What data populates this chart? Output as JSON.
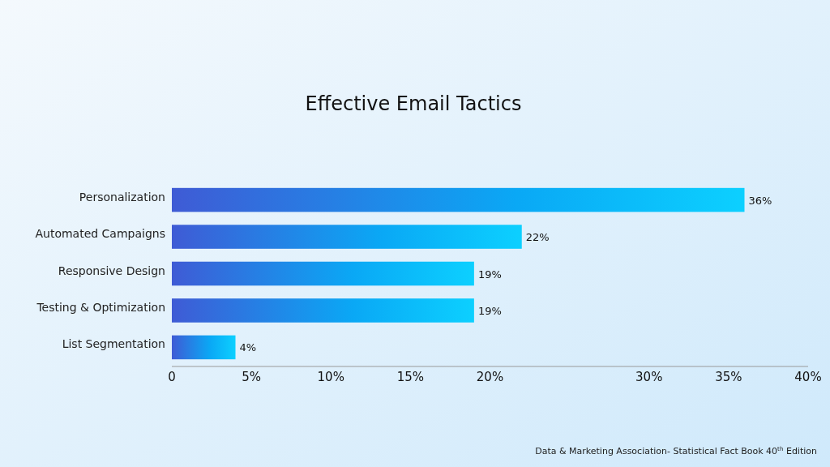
{
  "chart_data": {
    "type": "bar",
    "orientation": "horizontal",
    "title": "Effective Email Tactics",
    "categories": [
      "Personalization",
      "Automated Campaigns",
      "Responsive Design",
      "Testing & Optimization",
      "List Segmentation"
    ],
    "values": [
      36,
      22,
      19,
      19,
      4
    ],
    "value_labels": [
      "36%",
      "22%",
      "19%",
      "19%",
      "4%"
    ],
    "color": "#0aa8f5",
    "xlim": [
      0,
      40
    ],
    "xticks": [
      0,
      {
        "value": 5,
        "label": "5%"
      },
      {
        "value": 10,
        "label": "10%"
      },
      {
        "value": 15,
        "label": "15%"
      },
      {
        "value": 20,
        "label": "20%"
      },
      {
        "value": 30,
        "label": "30%"
      },
      {
        "value": 35,
        "label": "35%"
      },
      {
        "value": 40,
        "label": "40%"
      }
    ],
    "grid": false,
    "annotations": [
      "Data & Marketing Association- Statistical Fact Book 40$^{th}$ Edition"
    ]
  }
}
